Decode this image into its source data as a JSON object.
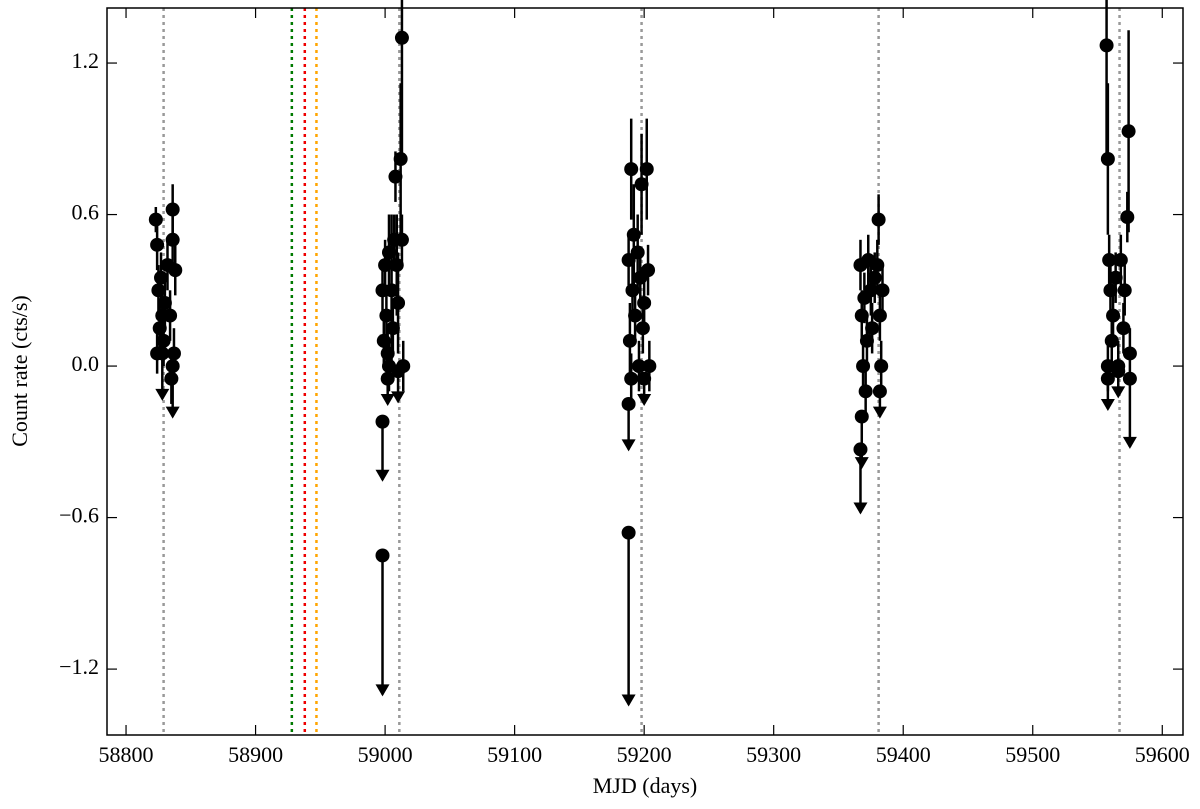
{
  "chart_data": {
    "type": "scatter",
    "xlabel": "MJD (days)",
    "ylabel": "Count rate (cts/s)",
    "xlim": [
      58785.3,
      59616
    ],
    "ylim": [
      -1.461,
      1.418
    ],
    "xticks": [
      58800,
      58900,
      59000,
      59100,
      59200,
      59300,
      59400,
      59500,
      59600
    ],
    "yticks": [
      {
        "value": -1.2,
        "label": "−1.2"
      },
      {
        "value": -0.6,
        "label": "−0.6"
      },
      {
        "value": 0,
        "label": "0.0"
      },
      0.6,
      1.2
    ],
    "grid": false,
    "vlines": {
      "x": [
        58829,
        59011,
        59198,
        59381,
        59567,
        58928,
        58938,
        58947
      ],
      "colors": [
        "#999999",
        "#999999",
        "#999999",
        "#999999",
        "#999999",
        "#007a00",
        "#ee0000",
        "#ffa500"
      ]
    },
    "points": {
      "color": "#000000",
      "x": [
        58823,
        58824,
        58825,
        58826,
        58824,
        58827,
        58828,
        58829,
        58830,
        58832,
        58834,
        58836,
        58836,
        58837,
        58838,
        58835,
        58998,
        58999,
        59000,
        59001,
        59002,
        59003,
        59005,
        59006,
        59007,
        59008,
        59009,
        59010,
        59012,
        59013,
        59013,
        59014,
        59003,
        59188,
        59189,
        59190,
        59191,
        59192,
        59193,
        59195,
        59196,
        59197,
        59198,
        59199,
        59200,
        59202,
        59203,
        59204,
        59190,
        59367,
        59368,
        59369,
        59370,
        59371,
        59372,
        59373,
        59375,
        59376,
        59378,
        59380,
        59381,
        59382,
        59383,
        59384,
        59557,
        59558,
        59559,
        59560,
        59561,
        59562,
        59564,
        59566,
        59568,
        59570,
        59571,
        59573,
        59574,
        59575,
        59558
      ],
      "values": [
        0.58,
        0.48,
        0.3,
        0.15,
        0.05,
        0.35,
        0.2,
        0.1,
        0.25,
        0.4,
        0.2,
        0.62,
        0.5,
        0.05,
        0.38,
        -0.05,
        0.3,
        0.1,
        0.4,
        0.2,
        0.05,
        0.45,
        0.3,
        0.15,
        0.5,
        0.75,
        0.4,
        0.25,
        0.82,
        1.3,
        0.5,
        0.0,
        0.0,
        0.42,
        0.1,
        0.78,
        0.3,
        0.52,
        0.2,
        0.45,
        0.0,
        0.35,
        0.72,
        0.15,
        0.25,
        0.78,
        0.38,
        0.0,
        -0.05,
        0.4,
        0.2,
        0.0,
        0.27,
        -0.1,
        0.1,
        0.42,
        0.3,
        0.15,
        0.35,
        0.4,
        0.58,
        0.2,
        0.0,
        0.3,
        1.27,
        0.82,
        0.42,
        0.3,
        0.1,
        0.2,
        0.35,
        0.0,
        0.42,
        0.15,
        0.3,
        0.59,
        0.93,
        0.05,
        0.0
      ],
      "errors": [
        0.05,
        0.1,
        0.1,
        0.1,
        0.08,
        0.1,
        0.1,
        0.1,
        0.1,
        0.1,
        0.1,
        0.1,
        0.1,
        0.1,
        0.1,
        0.1,
        0.1,
        0.1,
        0.1,
        0.1,
        0.1,
        0.15,
        0.3,
        0.1,
        0.1,
        0.1,
        0.2,
        0.2,
        0.3,
        0.48,
        0.1,
        0.1,
        0.1,
        0.1,
        0.15,
        0.2,
        0.1,
        0.2,
        0.1,
        0.15,
        0.1,
        0.1,
        0.2,
        0.1,
        0.1,
        0.2,
        0.1,
        0.1,
        0.1,
        0.1,
        0.1,
        0.1,
        0.1,
        0.1,
        0.1,
        0.1,
        0.1,
        0.1,
        0.1,
        0.1,
        0.1,
        0.1,
        0.1,
        0.1,
        0.45,
        0.3,
        0.1,
        0.1,
        0.1,
        0.1,
        0.1,
        0.1,
        0.1,
        0.1,
        0.1,
        0.1,
        0.4,
        0.1,
        0.1
      ]
    },
    "limits": {
      "color": "#000000",
      "x": [
        58828,
        58836,
        58998,
        58998,
        59002,
        59010,
        59188,
        59188,
        59200,
        59367,
        59368,
        59382,
        59558,
        59575,
        59566
      ],
      "values": [
        0.05,
        0.0,
        -0.22,
        -0.75,
        -0.05,
        -0.02,
        -0.15,
        -0.66,
        -0.05,
        -0.33,
        -0.2,
        -0.1,
        -0.05,
        -0.05,
        -0.02
      ],
      "errors": [
        0.18,
        0.2,
        0.23,
        0.55,
        0.1,
        0.12,
        0.18,
        0.68,
        0.1,
        0.25,
        0.2,
        0.1,
        0.12,
        0.27,
        0.1
      ]
    }
  }
}
